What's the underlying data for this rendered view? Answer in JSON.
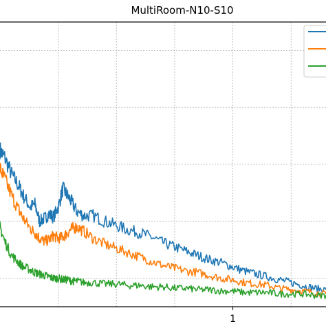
{
  "chart_data": {
    "type": "line",
    "title": "MultiRoom-N10-S10",
    "xlabel": "",
    "ylabel": "",
    "x_tick_labels": [
      "1"
    ],
    "grid": true,
    "legend_position": "top-right",
    "series": [
      {
        "color": "#1f77b4",
        "x": [
          0.0,
          0.02,
          0.05,
          0.08,
          0.1,
          0.13,
          0.15,
          0.17,
          0.19,
          0.21,
          0.23,
          0.25,
          0.27,
          0.29,
          0.31,
          0.33,
          0.36,
          0.4,
          0.45,
          0.5,
          0.55,
          0.6,
          0.65,
          0.7,
          0.75,
          0.8,
          0.85,
          0.9,
          0.95,
          1.0,
          1.05,
          1.1,
          1.15,
          1.2,
          1.25,
          1.3,
          1.35,
          1.4
        ],
        "y": [
          1.1,
          1.05,
          0.93,
          0.85,
          0.78,
          0.7,
          0.72,
          0.6,
          0.62,
          0.65,
          0.63,
          0.7,
          0.83,
          0.78,
          0.73,
          0.67,
          0.64,
          0.64,
          0.6,
          0.57,
          0.54,
          0.52,
          0.49,
          0.45,
          0.42,
          0.39,
          0.36,
          0.33,
          0.31,
          0.28,
          0.25,
          0.23,
          0.21,
          0.19,
          0.17,
          0.15,
          0.13,
          0.12
        ]
      },
      {
        "color": "#ff7f0e",
        "x": [
          0.0,
          0.02,
          0.05,
          0.08,
          0.1,
          0.13,
          0.15,
          0.17,
          0.19,
          0.21,
          0.23,
          0.25,
          0.27,
          0.29,
          0.31,
          0.33,
          0.36,
          0.4,
          0.45,
          0.5,
          0.55,
          0.6,
          0.65,
          0.7,
          0.75,
          0.8,
          0.85,
          0.9,
          0.95,
          1.0,
          1.05,
          1.1,
          1.15,
          1.2,
          1.25,
          1.3,
          1.35,
          1.4
        ],
        "y": [
          0.97,
          0.9,
          0.78,
          0.68,
          0.62,
          0.55,
          0.52,
          0.48,
          0.46,
          0.47,
          0.5,
          0.48,
          0.49,
          0.52,
          0.55,
          0.56,
          0.53,
          0.48,
          0.44,
          0.41,
          0.38,
          0.35,
          0.32,
          0.29,
          0.27,
          0.25,
          0.24,
          0.22,
          0.2,
          0.19,
          0.17,
          0.16,
          0.15,
          0.13,
          0.12,
          0.11,
          0.1,
          0.09
        ]
      },
      {
        "color": "#2ca02c",
        "x": [
          0.0,
          0.02,
          0.05,
          0.08,
          0.1,
          0.13,
          0.15,
          0.17,
          0.19,
          0.21,
          0.23,
          0.25,
          0.27,
          0.29,
          0.31,
          0.33,
          0.36,
          0.4,
          0.45,
          0.5,
          0.55,
          0.6,
          0.65,
          0.7,
          0.75,
          0.8,
          0.85,
          0.9,
          0.95,
          1.0,
          1.05,
          1.1,
          1.15,
          1.2,
          1.25,
          1.3,
          1.35,
          1.4
        ],
        "y": [
          0.56,
          0.46,
          0.36,
          0.31,
          0.28,
          0.26,
          0.24,
          0.23,
          0.22,
          0.21,
          0.2,
          0.2,
          0.19,
          0.19,
          0.18,
          0.18,
          0.17,
          0.17,
          0.16,
          0.16,
          0.15,
          0.15,
          0.14,
          0.14,
          0.13,
          0.13,
          0.12,
          0.12,
          0.11,
          0.11,
          0.1,
          0.1,
          0.1,
          0.09,
          0.09,
          0.09,
          0.08,
          0.08
        ]
      }
    ]
  }
}
